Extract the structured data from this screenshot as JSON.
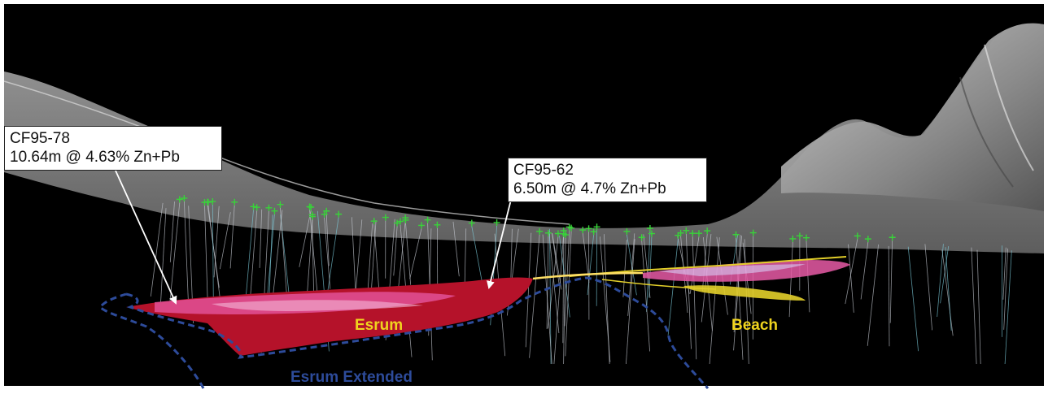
{
  "callouts": [
    {
      "hole_id": "CF95-78",
      "intercept": "10.64m @ 4.63% Zn+Pb"
    },
    {
      "hole_id": "CF95-62",
      "intercept": "6.50m @ 4.7% Zn+Pb"
    }
  ],
  "zone_labels": {
    "esrum": "Esrum",
    "beach": "Beach",
    "esrum_extended": "Esrum Extended"
  },
  "colors": {
    "background": "#000000",
    "terrain": "#9a9a9a",
    "esrum_body": "#b5122a",
    "high_grade": "#e85aa6",
    "beach_body": "#e3cf2a",
    "zone_label_yellow": "#f0d41e",
    "extended_outline": "#2d4b9a",
    "drill_collar": "#39d23a",
    "drill_trace": "#c8ccd4"
  },
  "icons": [
    "drill-collar-marker",
    "callout-leader-arrow"
  ]
}
